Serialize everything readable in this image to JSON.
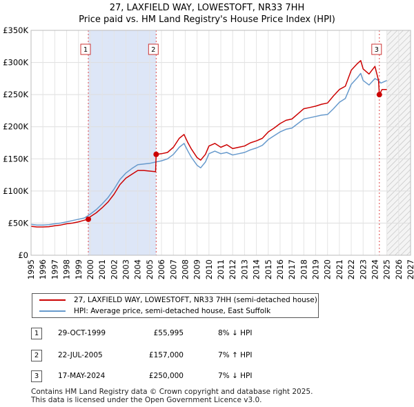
{
  "title_line1": "27, LAXFIELD WAY, LOWESTOFT, NR33 7HH",
  "title_line2": "Price paid vs. HM Land Registry's House Price Index (HPI)",
  "chart_data": {
    "type": "line",
    "title": "27, LAXFIELD WAY, LOWESTOFT, NR33 7HH - Price paid vs. HM Land Registry's House Price Index (HPI)",
    "xlabel": "",
    "ylabel": "",
    "xlim": [
      1995,
      2027
    ],
    "ylim": [
      0,
      350000
    ],
    "y_ticks": [
      0,
      50000,
      100000,
      150000,
      200000,
      250000,
      300000,
      350000
    ],
    "y_tick_labels": [
      "£0",
      "£50K",
      "£100K",
      "£150K",
      "£200K",
      "£250K",
      "£300K",
      "£350K"
    ],
    "x_ticks": [
      1995,
      1996,
      1997,
      1998,
      1999,
      2000,
      2001,
      2002,
      2003,
      2004,
      2005,
      2006,
      2007,
      2008,
      2009,
      2010,
      2011,
      2012,
      2013,
      2014,
      2015,
      2016,
      2017,
      2018,
      2019,
      2020,
      2021,
      2022,
      2023,
      2024,
      2025,
      2026,
      2027
    ],
    "grid": true,
    "projection_start": 2025.0,
    "colors": {
      "price": "#cc0000",
      "hpi": "#6699cc",
      "band": "#dde6f7",
      "marker_line": "#dd4444"
    },
    "series": [
      {
        "name": "27, LAXFIELD WAY, LOWESTOFT, NR33 7HH (semi-detached house)",
        "color": "#cc0000",
        "x": [
          1995.0,
          1995.5,
          1996.0,
          1996.5,
          1997.0,
          1997.5,
          1998.0,
          1998.5,
          1999.0,
          1999.5,
          1999.83,
          2000.0,
          2000.5,
          2001.0,
          2001.5,
          2002.0,
          2002.5,
          2003.0,
          2003.5,
          2004.0,
          2004.5,
          2005.0,
          2005.5,
          2005.55,
          2006.0,
          2006.5,
          2007.0,
          2007.5,
          2007.9,
          2008.2,
          2008.5,
          2009.0,
          2009.3,
          2009.7,
          2010.0,
          2010.5,
          2011.0,
          2011.5,
          2012.0,
          2012.5,
          2013.0,
          2013.5,
          2014.0,
          2014.5,
          2015.0,
          2015.5,
          2016.0,
          2016.5,
          2017.0,
          2017.5,
          2018.0,
          2018.5,
          2019.0,
          2019.5,
          2020.0,
          2020.5,
          2021.0,
          2021.5,
          2022.0,
          2022.5,
          2022.8,
          2023.0,
          2023.5,
          2024.0,
          2024.3,
          2024.37,
          2024.6,
          2025.0
        ],
        "values": [
          45000,
          44000,
          44000,
          44500,
          46000,
          47000,
          49000,
          50000,
          52000,
          54500,
          55995,
          60000,
          66000,
          74000,
          83000,
          95000,
          110000,
          120000,
          126000,
          132000,
          132000,
          131000,
          130000,
          157000,
          158000,
          160000,
          168000,
          182000,
          188000,
          176000,
          166000,
          152000,
          148000,
          157000,
          170000,
          174000,
          168000,
          172000,
          166000,
          168000,
          170000,
          175000,
          178000,
          182000,
          192000,
          198000,
          205000,
          210000,
          212000,
          220000,
          228000,
          230000,
          232000,
          235000,
          237000,
          248000,
          258000,
          263000,
          288000,
          298000,
          303000,
          290000,
          282000,
          294000,
          272000,
          250000,
          258000,
          258000
        ]
      },
      {
        "name": "HPI: Average price, semi-detached house, East Suffolk",
        "color": "#6699cc",
        "x": [
          1995.0,
          1995.5,
          1996.0,
          1996.5,
          1997.0,
          1997.5,
          1998.0,
          1998.5,
          1999.0,
          1999.5,
          2000.0,
          2000.5,
          2001.0,
          2001.5,
          2002.0,
          2002.5,
          2003.0,
          2003.5,
          2004.0,
          2004.5,
          2005.0,
          2005.5,
          2006.0,
          2006.5,
          2007.0,
          2007.5,
          2007.9,
          2008.2,
          2008.5,
          2009.0,
          2009.3,
          2009.7,
          2010.0,
          2010.5,
          2011.0,
          2011.5,
          2012.0,
          2012.5,
          2013.0,
          2013.5,
          2014.0,
          2014.5,
          2015.0,
          2015.5,
          2016.0,
          2016.5,
          2017.0,
          2017.5,
          2018.0,
          2018.5,
          2019.0,
          2019.5,
          2020.0,
          2020.5,
          2021.0,
          2021.5,
          2022.0,
          2022.5,
          2022.8,
          2023.0,
          2023.5,
          2024.0,
          2024.3,
          2024.5,
          2025.0
        ],
        "values": [
          48000,
          47000,
          47000,
          47500,
          49000,
          50000,
          52000,
          54000,
          56000,
          58000,
          64000,
          71000,
          80000,
          90000,
          103000,
          118000,
          128000,
          135000,
          141000,
          142000,
          143000,
          145000,
          147000,
          150000,
          157000,
          168000,
          174000,
          163000,
          153000,
          140000,
          136000,
          145000,
          158000,
          162000,
          158000,
          160000,
          156000,
          158000,
          160000,
          164000,
          167000,
          171000,
          180000,
          186000,
          192000,
          196000,
          198000,
          205000,
          212000,
          214000,
          216000,
          218000,
          219000,
          228000,
          238000,
          244000,
          266000,
          276000,
          283000,
          272000,
          265000,
          275000,
          272000,
          268000,
          272000
        ]
      }
    ],
    "transactions": [
      {
        "label": "1",
        "x": 1999.83,
        "value": 55995
      },
      {
        "label": "2",
        "x": 2005.55,
        "value": 157000
      },
      {
        "label": "3",
        "x": 2024.37,
        "value": 250000
      }
    ]
  },
  "legend": {
    "price_label": "27, LAXFIELD WAY, LOWESTOFT, NR33 7HH (semi-detached house)",
    "hpi_label": "HPI: Average price, semi-detached house, East Suffolk"
  },
  "table": [
    {
      "num": "1",
      "date": "29-OCT-1999",
      "price": "£55,995",
      "hpi": "8% ↓ HPI"
    },
    {
      "num": "2",
      "date": "22-JUL-2005",
      "price": "£157,000",
      "hpi": "7% ↑ HPI"
    },
    {
      "num": "3",
      "date": "17-MAY-2024",
      "price": "£250,000",
      "hpi": "7% ↓ HPI"
    }
  ],
  "footer": {
    "line1": "Contains HM Land Registry data © Crown copyright and database right 2025.",
    "line2": "This data is licensed under the Open Government Licence v3.0."
  }
}
